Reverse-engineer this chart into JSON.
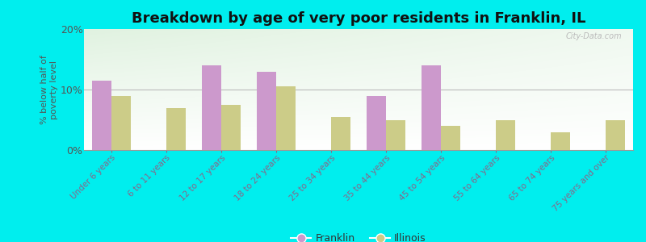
{
  "title": "Breakdown by age of very poor residents in Franklin, IL",
  "ylabel": "% below half of\npoverty level",
  "categories": [
    "Under 6 years",
    "6 to 11 years",
    "12 to 17 years",
    "18 to 24 years",
    "25 to 34 years",
    "35 to 44 years",
    "45 to 54 years",
    "55 to 64 years",
    "65 to 74 years",
    "75 years and over"
  ],
  "franklin_values": [
    11.5,
    0.0,
    14.0,
    13.0,
    0.0,
    9.0,
    14.0,
    0.0,
    0.0,
    0.0
  ],
  "illinois_values": [
    9.0,
    7.0,
    7.5,
    10.5,
    5.5,
    5.0,
    4.0,
    5.0,
    3.0,
    5.0
  ],
  "franklin_color": "#cc99cc",
  "illinois_color": "#cccc88",
  "background_color": "#00eeee",
  "ylim": [
    0,
    20
  ],
  "yticks": [
    0,
    10,
    20
  ],
  "ytick_labels": [
    "0%",
    "10%",
    "20%"
  ],
  "bar_width": 0.35,
  "title_fontsize": 13,
  "legend_labels": [
    "Franklin",
    "Illinois"
  ],
  "watermark": "City-Data.com",
  "tick_color": "#886688",
  "label_color": "#555555"
}
